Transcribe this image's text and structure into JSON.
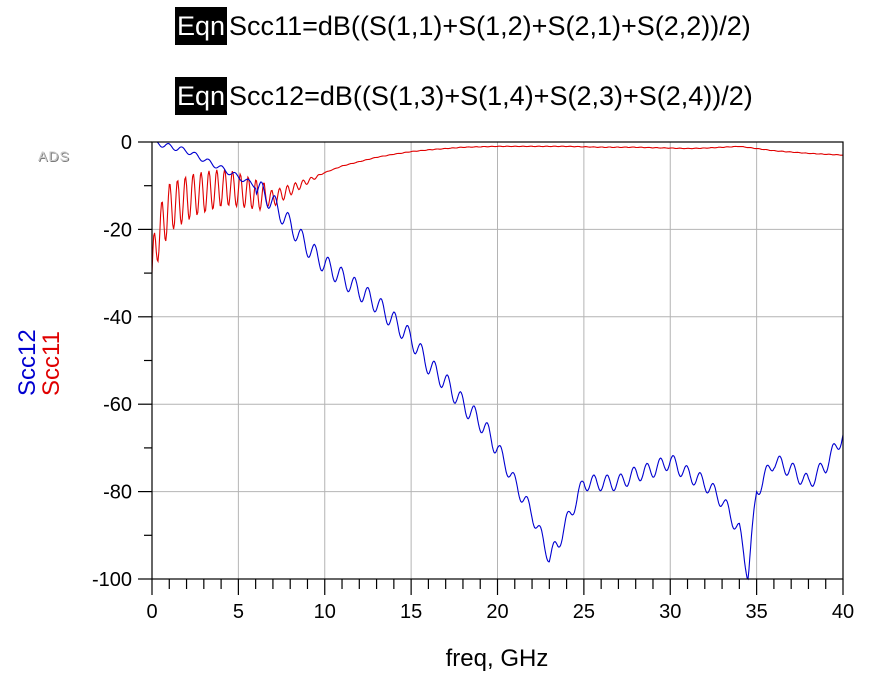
{
  "equations": [
    {
      "badge": "Eqn",
      "text": "Scc11=dB((S(1,1)+S(1,2)+S(2,1)+S(2,2))/2)"
    },
    {
      "badge": "Eqn",
      "text": "Scc12=dB((S(1,3)+S(1,4)+S(2,3)+S(2,4))/2)"
    }
  ],
  "logo_text": "ADS",
  "colors": {
    "scc11": "#e00000",
    "scc12": "#0000d0",
    "grid": "#b4b4b4",
    "axis": "#000000"
  },
  "chart_data": {
    "type": "line",
    "xlabel": "freq, GHz",
    "ylabels": [
      {
        "text": "Scc12",
        "color": "#0000d0"
      },
      {
        "text": "Scc11",
        "color": "#e00000"
      }
    ],
    "xlim": [
      0,
      40
    ],
    "ylim": [
      -100,
      0
    ],
    "xticks": [
      0,
      5,
      10,
      15,
      20,
      25,
      30,
      35,
      40
    ],
    "yticks": [
      0,
      -20,
      -40,
      -60,
      -80,
      -100
    ],
    "grid": true,
    "series": [
      {
        "name": "Scc11",
        "color": "#e00000",
        "x": [
          0,
          0.3,
          0.7,
          1,
          1.5,
          2,
          2.5,
          3,
          3.5,
          4,
          4.5,
          5,
          5.5,
          6,
          6.5,
          7,
          7.5,
          8,
          8.5,
          9,
          9.5,
          10,
          11,
          12,
          13,
          14,
          15,
          16,
          17,
          18,
          19,
          20,
          21,
          22,
          23,
          24,
          25,
          26,
          27,
          28,
          29,
          30,
          31,
          32,
          33,
          34,
          35,
          36,
          37,
          38,
          39,
          40
        ],
        "y": [
          -30,
          -22,
          -18,
          -15,
          -14,
          -13,
          -12,
          -11.5,
          -11,
          -10.5,
          -10.5,
          -11,
          -11.5,
          -12,
          -12.5,
          -13,
          -12,
          -11,
          -10,
          -9,
          -8,
          -7,
          -5.5,
          -4.5,
          -3.5,
          -2.8,
          -2.2,
          -1.8,
          -1.5,
          -1.2,
          -1.1,
          -1.0,
          -1.0,
          -1.0,
          -1.0,
          -1.0,
          -1.1,
          -1.2,
          -1.2,
          -1.2,
          -1.3,
          -1.4,
          -1.5,
          -1.4,
          -1.2,
          -1.0,
          -1.5,
          -2.0,
          -2.3,
          -2.6,
          -2.8,
          -3.0
        ]
      },
      {
        "name": "Scc12",
        "color": "#0000d0",
        "x": [
          0,
          0.5,
          1,
          1.5,
          2,
          2.5,
          3,
          3.5,
          4,
          4.5,
          5,
          5.5,
          6,
          7,
          8,
          9,
          10,
          11,
          12,
          13,
          14,
          15,
          16,
          17,
          18,
          19,
          20,
          21,
          22,
          22.5,
          23,
          23.5,
          24,
          25,
          26,
          27,
          28,
          29,
          30,
          31,
          32,
          33,
          34,
          34.5,
          35,
          36,
          37,
          38,
          39,
          40
        ],
        "y": [
          0,
          -0.5,
          -1,
          -1.5,
          -2,
          -3,
          -4,
          -5,
          -6,
          -7,
          -8,
          -9,
          -10,
          -14,
          -19,
          -24,
          -28,
          -31,
          -34,
          -37,
          -41,
          -45,
          -51,
          -55,
          -60,
          -64,
          -70,
          -78,
          -85,
          -90,
          -95,
          -92,
          -87,
          -78,
          -78,
          -78,
          -76,
          -75,
          -73,
          -76,
          -78,
          -82,
          -89,
          -99,
          -80,
          -73,
          -75,
          -78,
          -74,
          -67
        ]
      }
    ]
  }
}
